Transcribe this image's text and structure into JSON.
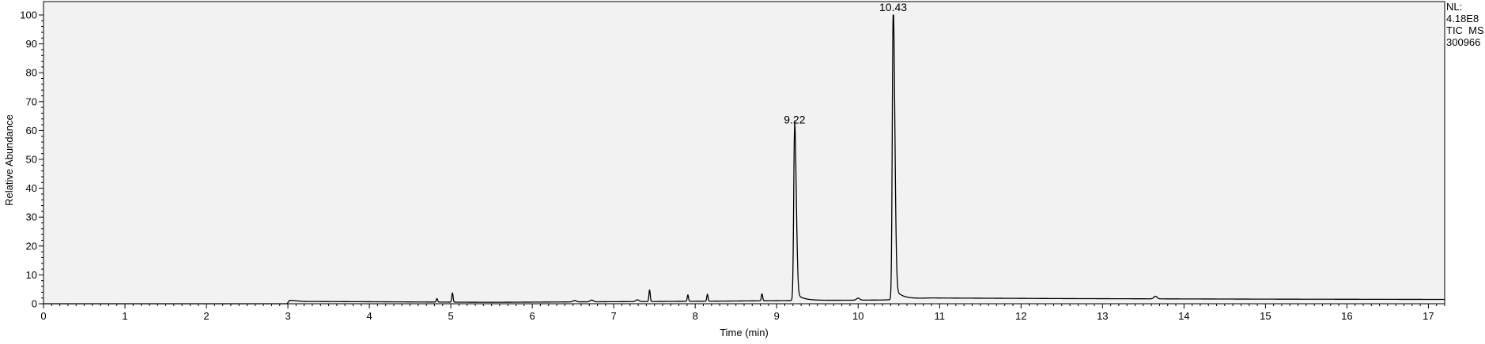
{
  "chart_data": {
    "type": "line",
    "xlabel": "Time (min)",
    "ylabel": "Relative Abundance",
    "xlim": [
      0,
      17.2
    ],
    "ylim": [
      0,
      100
    ],
    "x_ticks": [
      0,
      1,
      2,
      3,
      4,
      5,
      6,
      7,
      8,
      9,
      10,
      11,
      12,
      13,
      14,
      15,
      16,
      17
    ],
    "y_ticks": [
      0,
      10,
      20,
      30,
      40,
      50,
      60,
      70,
      80,
      90,
      100
    ],
    "grid": false,
    "background": "#f2f2f2",
    "line_color": "#000000",
    "info": [
      "NL:",
      "4.18E8",
      "TIC  MS",
      "300966"
    ],
    "peaks": [
      {
        "rt": 9.22,
        "height": 61,
        "label": "9.22"
      },
      {
        "rt": 10.43,
        "height": 100,
        "label": "10.43"
      }
    ],
    "minor_peaks": [
      {
        "rt": 4.83,
        "height": 1.2
      },
      {
        "rt": 5.02,
        "height": 3.2
      },
      {
        "rt": 6.52,
        "height": 0.5
      },
      {
        "rt": 6.73,
        "height": 0.6
      },
      {
        "rt": 7.29,
        "height": 0.6
      },
      {
        "rt": 7.44,
        "height": 4.0
      },
      {
        "rt": 7.91,
        "height": 2.2
      },
      {
        "rt": 8.15,
        "height": 2.4
      },
      {
        "rt": 8.82,
        "height": 2.4
      },
      {
        "rt": 10.0,
        "height": 0.7
      },
      {
        "rt": 13.65,
        "height": 0.9
      }
    ],
    "baseline": [
      [
        0,
        0
      ],
      [
        2.99,
        0
      ],
      [
        3.02,
        1.2
      ],
      [
        3.2,
        0.8
      ],
      [
        5.5,
        0.5
      ],
      [
        8.25,
        0.9
      ],
      [
        9.1,
        1.1
      ],
      [
        9.7,
        1.2
      ],
      [
        10.3,
        1.3
      ],
      [
        10.9,
        2.0
      ],
      [
        12.5,
        1.8
      ],
      [
        15.0,
        1.6
      ],
      [
        17.2,
        1.5
      ]
    ]
  }
}
